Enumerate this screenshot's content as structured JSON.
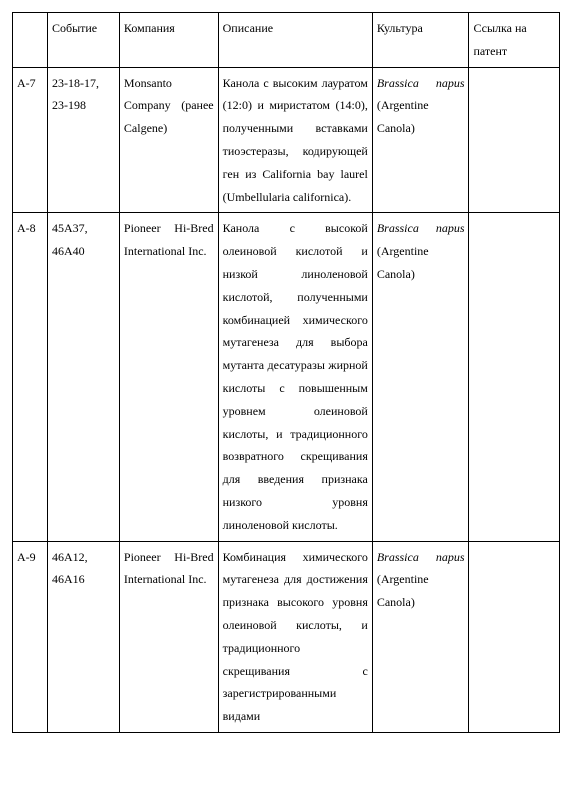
{
  "columns": {
    "id": "",
    "event": "Событие",
    "company": "Компания",
    "description": "Описание",
    "culture": "Культура",
    "patent": "Ссылка на патент"
  },
  "rows": [
    {
      "id": "A-7",
      "event": "23-18-17, 23-198",
      "company": "Monsanto Company (ранее Calgene)",
      "description": "Канола с высоким лауратом (12:0) и миристатом (14:0), полученными вставками тиоэстеразы, кодирующей ген из California bay laurel (Umbellularia californica).",
      "culture_italic": "Brassica napus",
      "culture_rest": " (Argentine Canola)",
      "patent": ""
    },
    {
      "id": "A-8",
      "event": "45A37, 46A40",
      "company": "Pioneer Hi-Bred International Inc.",
      "description": "Канола с высокой олеиновой кислотой и низкой линоленовой кислотой, полученными комбинацией химического мутагенеза для выбора мутанта десатуразы жирной кислоты с повышенным уровнем олеиновой кислоты, и традиционного возвратного скрещивания для введения признака низкого уровня линоленовой кислоты.",
      "culture_italic": "Brassica napus",
      "culture_rest": " (Argentine Canola)",
      "patent": ""
    },
    {
      "id": "A-9",
      "event": "46A12, 46A16",
      "company": "Pioneer Hi-Bred International Inc.",
      "description": "Комбинация химического мутагенеза для достижения признака высокого уровня олеиновой кислоты, и традиционного скрещивания с зарегистрированными видами",
      "culture_italic": "Brassica napus",
      "culture_rest": " (Argentine Canola)",
      "patent": ""
    }
  ]
}
